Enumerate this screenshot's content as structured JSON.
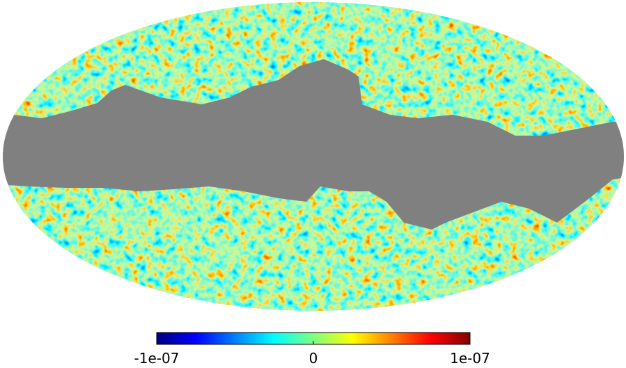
{
  "chart_data": {
    "type": "mollweide",
    "colormap": "jet",
    "clim": [
      -1e-07,
      1e-07
    ],
    "cticks": [
      {
        "value": -1e-07,
        "label": "-1e-07"
      },
      0,
      {
        "value": 1e-07,
        "label": "1e-07"
      }
    ]
  }
}
